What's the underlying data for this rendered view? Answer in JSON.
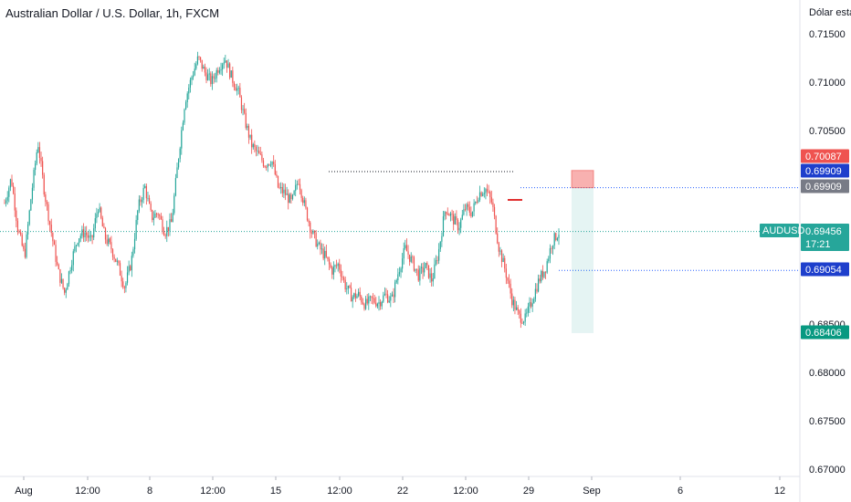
{
  "title": "Australian Dollar / U.S. Dollar, 1h, FXCM",
  "scale_label": "Dólar esta",
  "chart_data": {
    "type": "candlestick",
    "symbol": "AUDUSD",
    "interval": "1h",
    "source": "FXCM",
    "y_ticks": [
      "0.71500",
      "0.71000",
      "0.70500",
      "0.68500",
      "0.68000",
      "0.67500",
      "0.67000"
    ],
    "y_tick_values": [
      0.715,
      0.71,
      0.705,
      0.685,
      0.68,
      0.675,
      0.67
    ],
    "x_ticks": [
      "Aug",
      "12:00",
      "8",
      "12:00",
      "15",
      "12:00",
      "22",
      "12:00",
      "29",
      "Sep",
      "6",
      "12"
    ],
    "ylim": [
      0.6695,
      0.7175
    ],
    "price_path": [
      0.6975,
      0.7001,
      0.6948,
      0.692,
      0.6983,
      0.7038,
      0.6985,
      0.6945,
      0.6905,
      0.6882,
      0.6915,
      0.694,
      0.6945,
      0.6935,
      0.6972,
      0.694,
      0.6928,
      0.691,
      0.6888,
      0.6915,
      0.697,
      0.6992,
      0.696,
      0.6965,
      0.6945,
      0.6955,
      0.702,
      0.708,
      0.7105,
      0.7125,
      0.711,
      0.71,
      0.7115,
      0.7125,
      0.7105,
      0.709,
      0.706,
      0.7035,
      0.7025,
      0.7015,
      0.702,
      0.699,
      0.6985,
      0.6975,
      0.7,
      0.697,
      0.6945,
      0.693,
      0.692,
      0.6905,
      0.6912,
      0.689,
      0.6878,
      0.688,
      0.687,
      0.6875,
      0.6872,
      0.688,
      0.6875,
      0.6905,
      0.6928,
      0.6915,
      0.69,
      0.691,
      0.6895,
      0.6925,
      0.697,
      0.696,
      0.695,
      0.697,
      0.6965,
      0.6985,
      0.699,
      0.6975,
      0.693,
      0.6905,
      0.6875,
      0.6858,
      0.6855,
      0.6875,
      0.6895,
      0.6908,
      0.6935,
      0.6945
    ],
    "price_tags": [
      {
        "label": "",
        "value": "0.70087",
        "price": 0.70087,
        "color": "#ef5350"
      },
      {
        "label": "",
        "value": "0.69909",
        "price": 0.69909,
        "color": "#1e3fcc"
      },
      {
        "label": "",
        "value": "0.69909",
        "price": 0.69909,
        "color": "#787b86"
      },
      {
        "label": "AUDUSD",
        "value": "0.69456",
        "sub": "17:21",
        "price": 0.69456,
        "color": "#26a69a"
      },
      {
        "label": "",
        "value": "0.69054",
        "price": 0.69054,
        "color": "#1e3fcc"
      },
      {
        "label": "",
        "value": "0.68406",
        "price": 0.68406,
        "color": "#089981"
      }
    ],
    "position": {
      "entry": 0.69909,
      "stop": 0.70087,
      "target": 0.68406
    },
    "horizontal_lines": [
      0.69456,
      0.69909,
      0.69054
    ],
    "up_color": "#26a69a",
    "down_color": "#ef5350"
  }
}
